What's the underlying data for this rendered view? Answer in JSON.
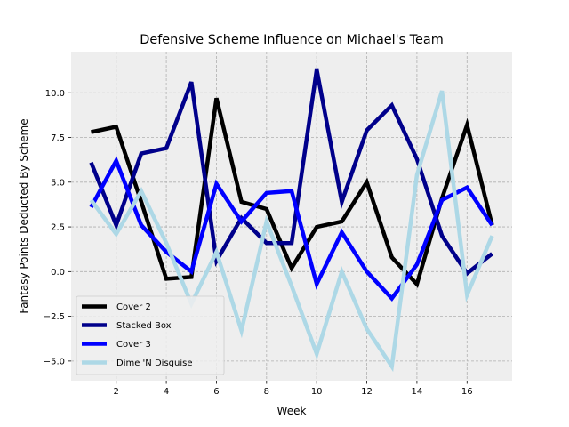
{
  "chart_data": {
    "type": "line",
    "title": "Defensive Scheme Influence on Michael's Team",
    "xlabel": "Week",
    "ylabel": "Fantasy Points Deducted By Scheme",
    "xlim": [
      0.2,
      17.8
    ],
    "ylim": [
      -6.1,
      12.3
    ],
    "xticks": [
      2,
      4,
      6,
      8,
      10,
      12,
      14,
      16
    ],
    "yticks": [
      -5.0,
      -2.5,
      0.0,
      2.5,
      5.0,
      7.5,
      10.0
    ],
    "ytick_labels": [
      "−5.0",
      "−2.5",
      "0.0",
      "2.5",
      "5.0",
      "7.5",
      "10.0"
    ],
    "grid": true,
    "legend_position": "lower-left",
    "x": [
      1,
      2,
      3,
      4,
      5,
      6,
      7,
      8,
      9,
      10,
      11,
      12,
      13,
      14,
      15,
      16,
      17
    ],
    "series": [
      {
        "name": "Cover 2",
        "color": "#000000",
        "values": [
          7.8,
          8.1,
          3.9,
          -0.4,
          -0.3,
          9.7,
          3.9,
          3.5,
          0.2,
          2.5,
          2.8,
          5.0,
          0.8,
          -0.7,
          4.1,
          8.2,
          2.6
        ]
      },
      {
        "name": "Stacked Box",
        "color": "#00008b",
        "values": [
          6.1,
          2.6,
          6.6,
          6.9,
          10.6,
          0.6,
          3.0,
          1.6,
          1.6,
          11.3,
          3.9,
          7.9,
          9.3,
          6.3,
          2.0,
          -0.1,
          1.0
        ]
      },
      {
        "name": "Cover 3",
        "color": "#0000ff",
        "values": [
          3.6,
          6.2,
          2.6,
          1.1,
          0.0,
          4.9,
          2.8,
          4.4,
          4.5,
          -0.7,
          2.2,
          0.0,
          -1.5,
          0.4,
          4.0,
          4.7,
          2.6
        ]
      },
      {
        "name": "Dime 'N Disguise",
        "color": "#add8e6",
        "values": [
          4.0,
          2.1,
          4.5,
          1.6,
          -1.8,
          1.1,
          -3.3,
          2.8,
          -0.8,
          -4.6,
          0.0,
          -3.2,
          -5.3,
          5.4,
          10.1,
          -1.3,
          2.0
        ]
      }
    ]
  }
}
